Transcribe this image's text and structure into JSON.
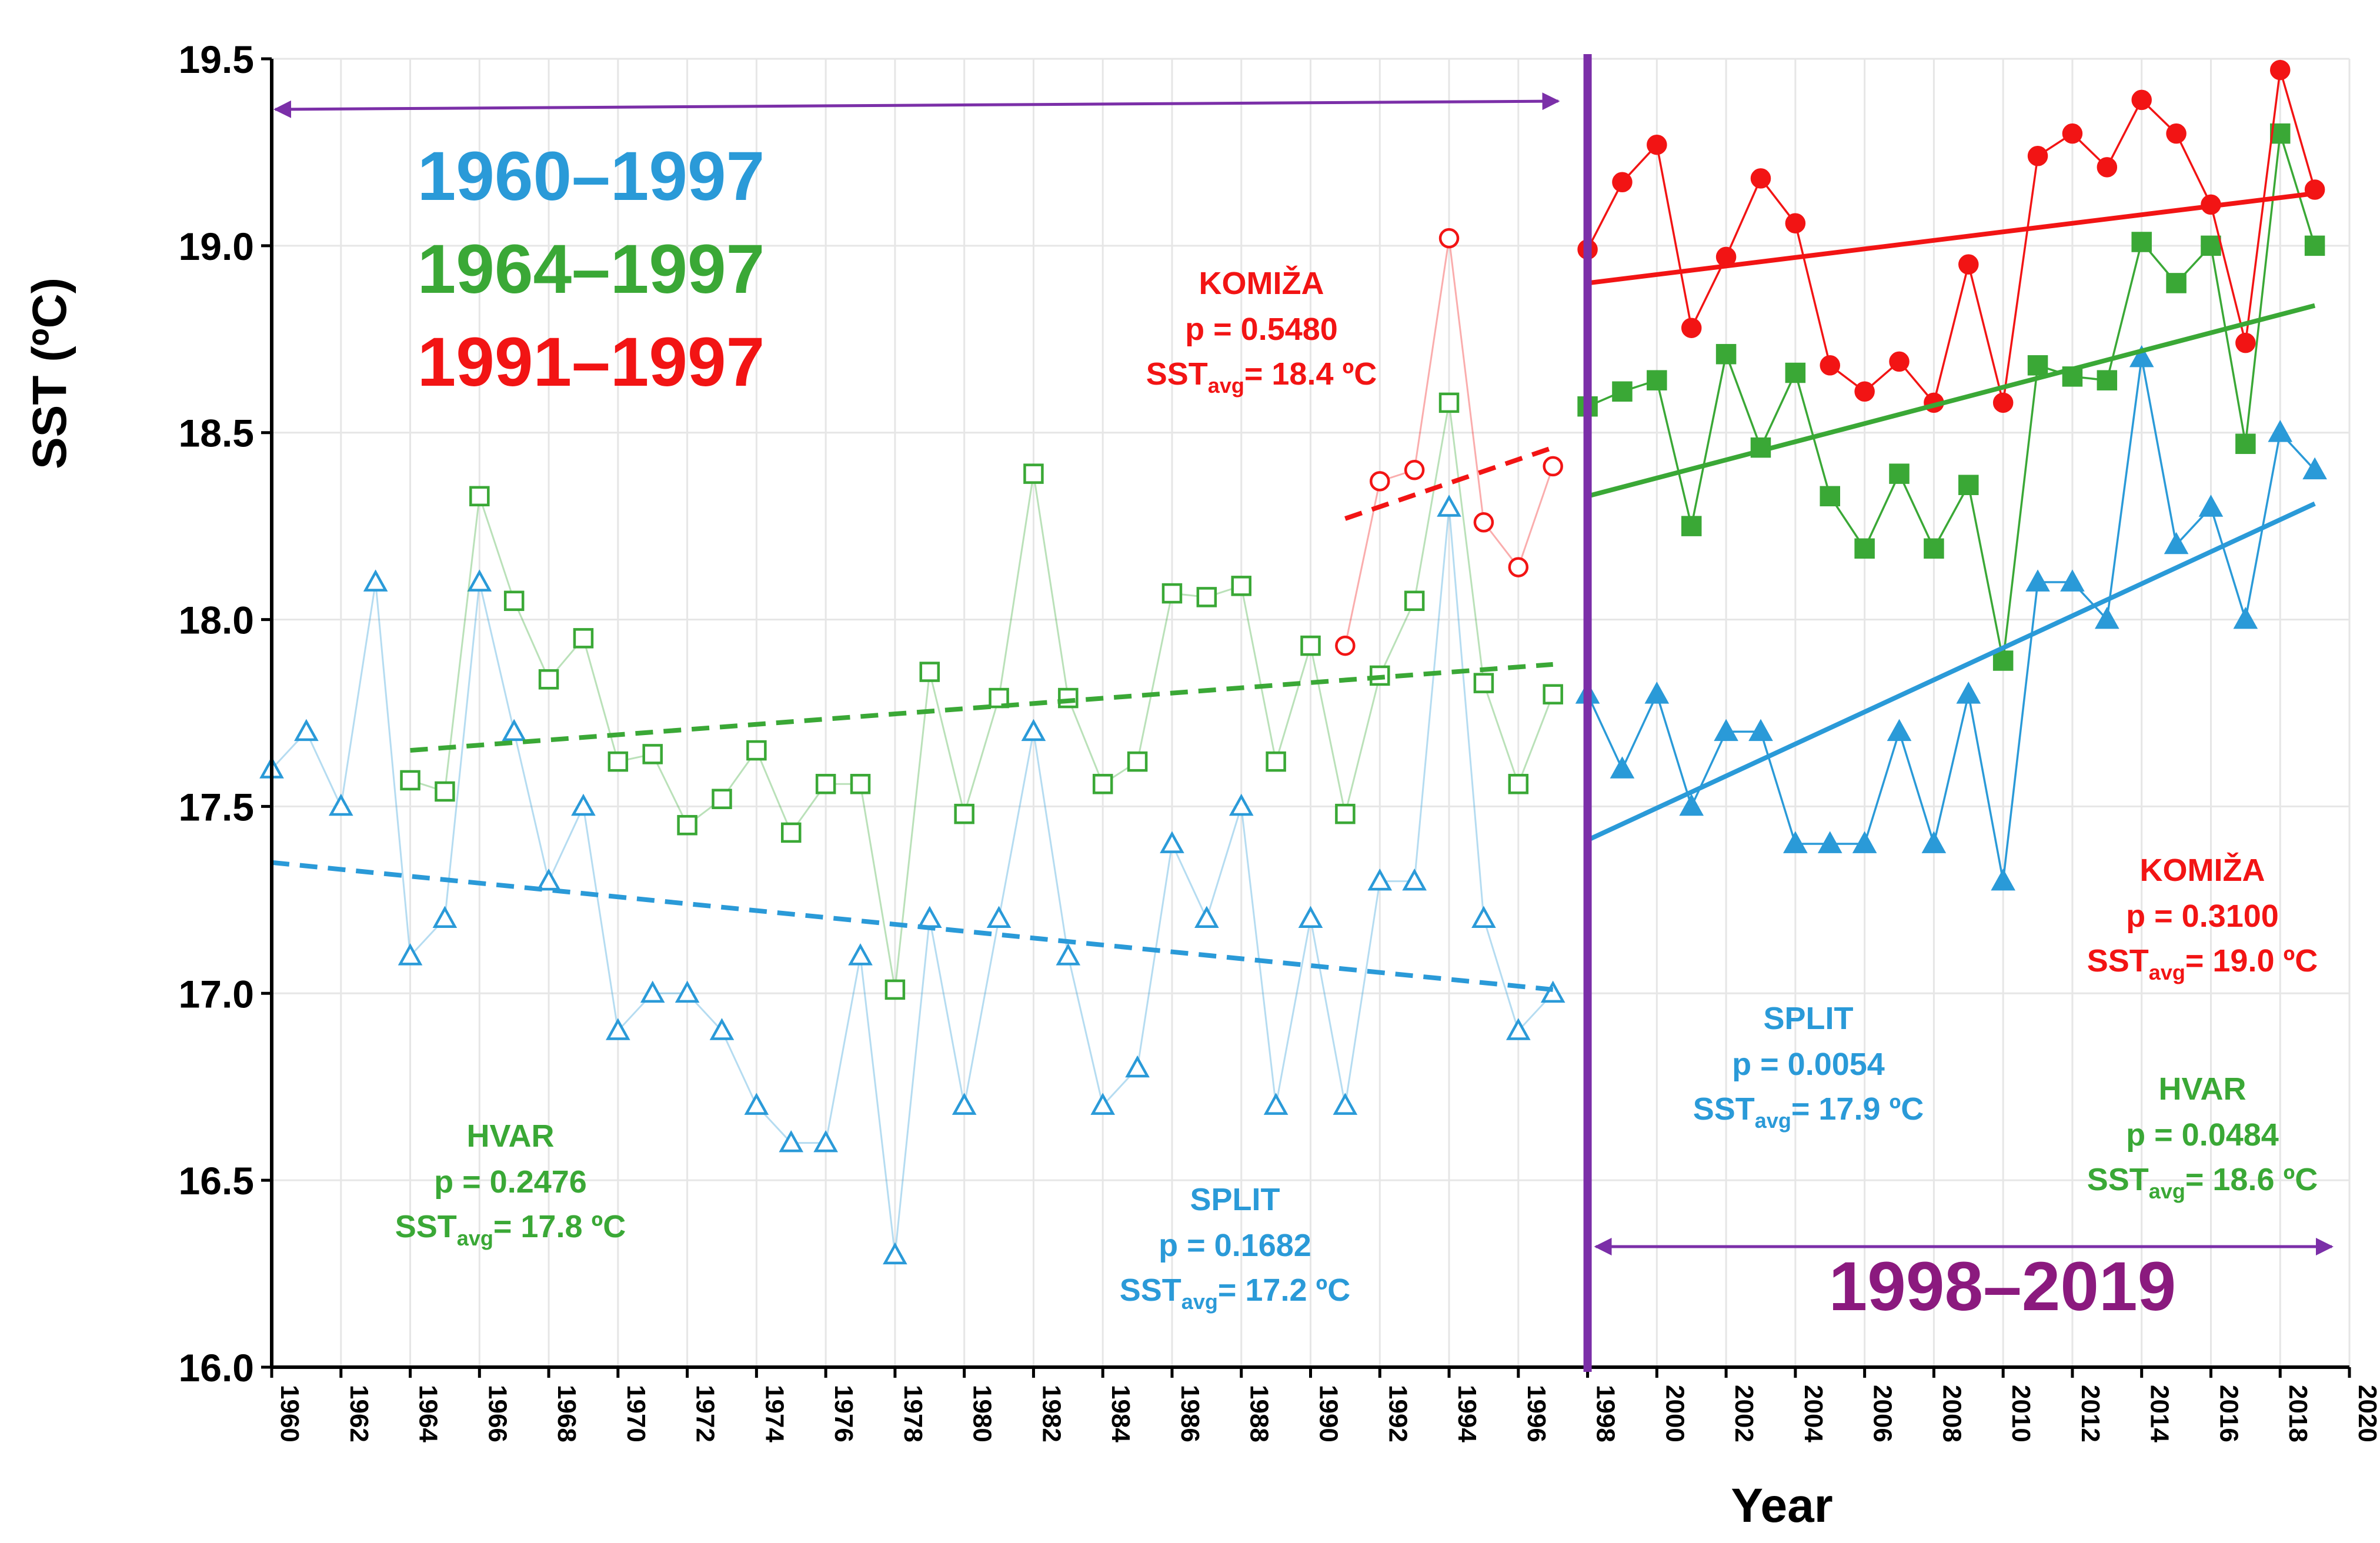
{
  "chart_data": {
    "type": "line",
    "xlabel": "Year",
    "ylabel": "SST (ºC)",
    "xlim": [
      1960,
      2020
    ],
    "ylim": [
      16.0,
      19.5
    ],
    "ytick_labels": [
      "16.0",
      "16.5",
      "17.0",
      "17.5",
      "18.0",
      "18.5",
      "19.0",
      "19.5"
    ],
    "xticks": [
      1960,
      1962,
      1964,
      1966,
      1968,
      1970,
      1972,
      1974,
      1976,
      1978,
      1980,
      1982,
      1984,
      1986,
      1988,
      1990,
      1992,
      1994,
      1996,
      1998,
      2000,
      2002,
      2004,
      2006,
      2008,
      2010,
      2012,
      2014,
      2016,
      2018,
      2020
    ],
    "xtick_labels": [
      "1960",
      "1962",
      "1964",
      "1966",
      "1968",
      "1970",
      "1972",
      "1974",
      "1976",
      "1978",
      "1980",
      "1982",
      "1984",
      "1986",
      "1988",
      "1990",
      "1992",
      "1994",
      "1996",
      "1998",
      "2000",
      "2002",
      "2004",
      "2006",
      "2008",
      "2010",
      "2012",
      "2014",
      "2016",
      "2018",
      "2020"
    ],
    "divider_year": 1998,
    "period_labels": {
      "split_early": "1960–1997",
      "hvar_early": "1964–1997",
      "komiza_early": "1991–1997",
      "late": "1998–2019"
    },
    "colors": {
      "split": "#2a9ad8",
      "hvar": "#3aa836",
      "komiza": "#f21414",
      "divider": "#7b2fa8",
      "late_label": "#8b1a7e",
      "axis": "#000000",
      "grid": "#e6e6e6"
    },
    "series": [
      {
        "name": "SPLIT",
        "key": "split",
        "x": [
          1960,
          1961,
          1962,
          1963,
          1964,
          1965,
          1966,
          1967,
          1968,
          1969,
          1970,
          1971,
          1972,
          1973,
          1974,
          1975,
          1976,
          1977,
          1978,
          1979,
          1980,
          1981,
          1982,
          1983,
          1984,
          1985,
          1986,
          1987,
          1988,
          1989,
          1990,
          1991,
          1992,
          1993,
          1994,
          1995,
          1996,
          1997,
          1998,
          1999,
          2000,
          2001,
          2002,
          2003,
          2004,
          2005,
          2006,
          2007,
          2008,
          2009,
          2010,
          2011,
          2012,
          2013,
          2014,
          2015,
          2016,
          2017,
          2018,
          2019
        ],
        "values": [
          17.6,
          17.7,
          17.5,
          18.1,
          17.1,
          17.2,
          18.1,
          17.7,
          17.3,
          17.5,
          16.9,
          17.0,
          17.0,
          16.9,
          16.7,
          16.6,
          16.6,
          17.1,
          16.3,
          17.2,
          16.7,
          17.2,
          17.7,
          17.1,
          16.7,
          16.8,
          17.4,
          17.2,
          17.5,
          16.7,
          17.2,
          16.7,
          17.3,
          17.3,
          18.3,
          17.2,
          16.9,
          17.0,
          17.8,
          17.6,
          17.8,
          17.5,
          17.7,
          17.7,
          17.4,
          17.4,
          17.4,
          17.7,
          17.4,
          17.8,
          17.3,
          18.1,
          18.1,
          18.0,
          18.7,
          18.2,
          18.3,
          18.0,
          18.5,
          18.4
        ],
        "marker": "triangle",
        "trend_early": {
          "x": [
            1960,
            1997
          ],
          "y": [
            17.35,
            17.01
          ]
        },
        "trend_late": {
          "x": [
            1998,
            2019
          ],
          "y": [
            17.41,
            18.31
          ]
        },
        "stats_early": {
          "name": "SPLIT",
          "p": "p = 0.1682",
          "sst_prefix": "SST",
          "sst_sub": "avg",
          "sst_value": "= 17.2 ºC"
        },
        "stats_late": {
          "name": "SPLIT",
          "p": "p = 0.0054",
          "sst_prefix": "SST",
          "sst_sub": "avg",
          "sst_value": "= 17.9 ºC"
        }
      },
      {
        "name": "HVAR",
        "key": "hvar",
        "x": [
          1964,
          1965,
          1966,
          1967,
          1968,
          1969,
          1970,
          1971,
          1972,
          1973,
          1974,
          1975,
          1976,
          1977,
          1978,
          1979,
          1980,
          1981,
          1982,
          1983,
          1984,
          1985,
          1986,
          1987,
          1988,
          1989,
          1990,
          1991,
          1992,
          1993,
          1994,
          1995,
          1996,
          1997,
          1998,
          1999,
          2000,
          2001,
          2002,
          2003,
          2004,
          2005,
          2006,
          2007,
          2008,
          2009,
          2010,
          2011,
          2012,
          2013,
          2014,
          2015,
          2016,
          2017,
          2018,
          2019
        ],
        "values": [
          17.57,
          17.54,
          18.33,
          18.05,
          17.84,
          17.95,
          17.62,
          17.64,
          17.45,
          17.52,
          17.65,
          17.43,
          17.56,
          17.56,
          17.01,
          17.86,
          17.48,
          17.79,
          18.39,
          17.79,
          17.56,
          17.62,
          18.07,
          18.06,
          18.09,
          17.62,
          17.93,
          17.48,
          17.85,
          18.05,
          18.58,
          17.83,
          17.56,
          17.8,
          18.57,
          18.61,
          18.64,
          18.25,
          18.71,
          18.46,
          18.66,
          18.33,
          18.19,
          18.39,
          18.19,
          18.36,
          17.89,
          18.68,
          18.65,
          18.64,
          19.01,
          18.9,
          19.0,
          18.47,
          19.3,
          19.0
        ],
        "marker": "square",
        "trend_early": {
          "x": [
            1964,
            1997
          ],
          "y": [
            17.65,
            17.88
          ]
        },
        "trend_late": {
          "x": [
            1998,
            2019
          ],
          "y": [
            18.33,
            18.84
          ]
        },
        "stats_early": {
          "name": "HVAR",
          "p": "p = 0.2476",
          "sst_prefix": "SST",
          "sst_sub": "avg",
          "sst_value": "= 17.8 ºC"
        },
        "stats_late": {
          "name": "HVAR",
          "p": "p = 0.0484",
          "sst_prefix": "SST",
          "sst_sub": "avg",
          "sst_value": "= 18.6 ºC"
        }
      },
      {
        "name": "KOMIŽA",
        "key": "komiza",
        "x": [
          1991,
          1992,
          1993,
          1994,
          1995,
          1996,
          1997,
          1998,
          1999,
          2000,
          2001,
          2002,
          2003,
          2004,
          2005,
          2006,
          2007,
          2008,
          2009,
          2010,
          2011,
          2012,
          2013,
          2014,
          2015,
          2016,
          2017,
          2018,
          2019
        ],
        "values": [
          17.93,
          18.37,
          18.4,
          19.02,
          18.26,
          18.14,
          18.41,
          18.99,
          19.17,
          19.27,
          18.78,
          18.97,
          19.18,
          19.06,
          18.68,
          18.61,
          18.69,
          18.58,
          18.95,
          18.58,
          19.24,
          19.3,
          19.21,
          19.39,
          19.3,
          19.11,
          18.74,
          19.47,
          19.15
        ],
        "marker": "circle",
        "trend_early": {
          "x": [
            1991,
            1997
          ],
          "y": [
            18.27,
            18.46
          ]
        },
        "trend_late": {
          "x": [
            1998,
            2019
          ],
          "y": [
            18.9,
            19.14
          ]
        },
        "stats_early": {
          "name": "KOMIŽA",
          "p": "p = 0.5480",
          "sst_prefix": "SST",
          "sst_sub": "avg",
          "sst_value": "= 18.4 ºC"
        },
        "stats_late": {
          "name": "KOMIŽA",
          "p": "p = 0.3100",
          "sst_prefix": "SST",
          "sst_sub": "avg",
          "sst_value": "= 19.0 ºC"
        }
      }
    ]
  }
}
